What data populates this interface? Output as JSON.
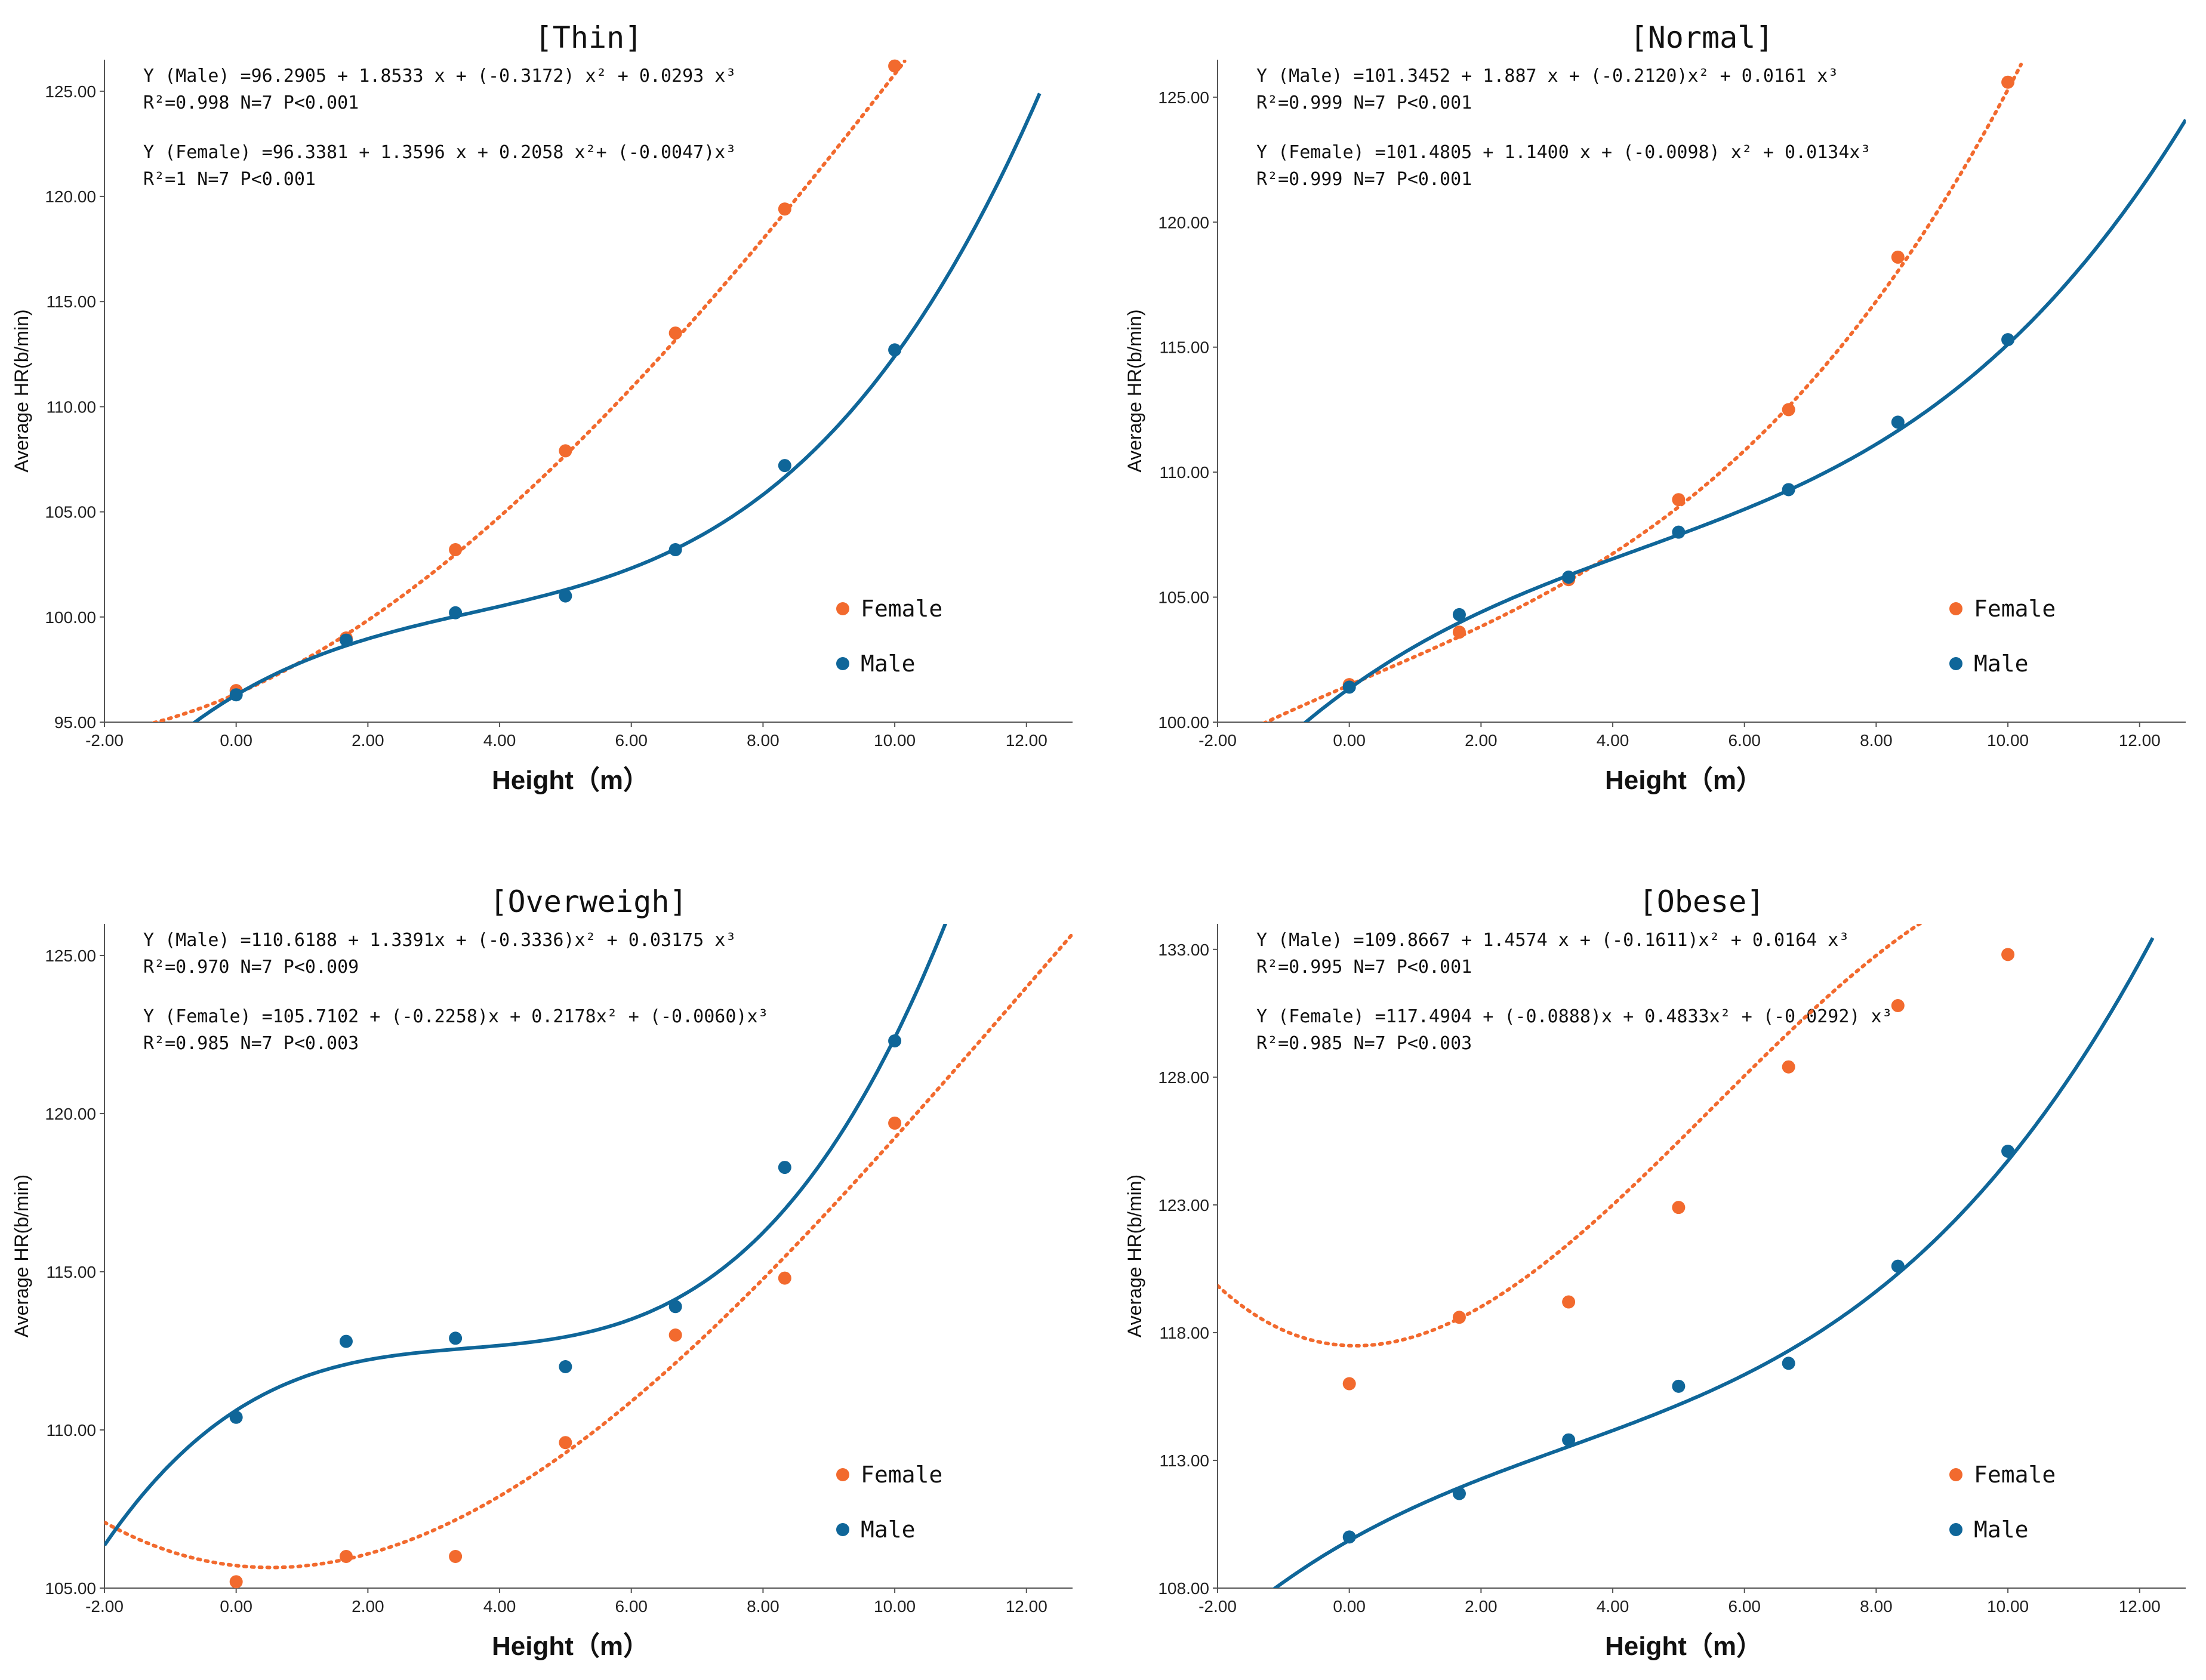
{
  "figure": {
    "series_names": [
      "Female",
      "Male"
    ],
    "colors": {
      "Female": "#f26a2e",
      "Male": "#0f6699"
    }
  },
  "chart_data": [
    {
      "type": "scatter",
      "title": "[Thin]",
      "xlabel": "Height（m）",
      "ylabel": "Average HR(b/min)",
      "xlim": [
        -2,
        12.7
      ],
      "ylim": [
        95,
        126.5
      ],
      "xticks": [
        "-2.00",
        "0.00",
        "2.00",
        "4.00",
        "6.00",
        "8.00",
        "10.00",
        "12.00"
      ],
      "yticks": [
        "95.00",
        "100.00",
        "105.00",
        "110.00",
        "115.00",
        "120.00",
        "125.00"
      ],
      "equations": [
        "Y (Male) =96.2905 + 1.8533 x + (-0.3172) x² + 0.0293 x³",
        "R²=0.998      N=7      P<0.001",
        "Y (Female) =96.3381 + 1.3596 x + 0.2058 x²+ (-0.0047)x³",
        "R²=1    N=7       P<0.001"
      ],
      "legend": [
        "Female",
        "Male"
      ],
      "series": [
        {
          "name": "Female",
          "x": [
            0,
            1.67,
            3.33,
            5,
            6.67,
            8.33,
            10
          ],
          "y": [
            96.5,
            99.0,
            103.2,
            107.9,
            113.5,
            119.4,
            126.2
          ],
          "coef": [
            96.3381,
            1.3596,
            0.2058,
            -0.0047
          ],
          "fit_range": [
            -1.25,
            10.15
          ]
        },
        {
          "name": "Male",
          "x": [
            0,
            1.67,
            3.33,
            5,
            6.67,
            8.33,
            10
          ],
          "y": [
            96.3,
            98.9,
            100.2,
            101.0,
            103.2,
            107.2,
            112.7
          ],
          "coef": [
            96.2905,
            1.8533,
            -0.3172,
            0.0293
          ],
          "fit_range": [
            -0.7,
            12.2
          ]
        }
      ]
    },
    {
      "type": "scatter",
      "title": "[Normal]",
      "xlabel": "Height（m）",
      "ylabel": "Average HR(b/min)",
      "xlim": [
        -2,
        12.7
      ],
      "ylim": [
        100,
        126.5
      ],
      "xticks": [
        "-2.00",
        "0.00",
        "2.00",
        "4.00",
        "6.00",
        "8.00",
        "10.00",
        "12.00"
      ],
      "yticks": [
        "100.00",
        "105.00",
        "110.00",
        "115.00",
        "120.00",
        "125.00"
      ],
      "equations": [
        "Y (Male) =101.3452 + 1.887 x + (-0.2120)x² + 0.0161 x³",
        "R²=0.999      N=7      P<0.001",
        "Y (Female) =101.4805 + 1.1400 x + (-0.0098) x² + 0.0134x³",
        "R²=0.999      N=7      P<0.001"
      ],
      "legend": [
        "Female",
        "Male"
      ],
      "series": [
        {
          "name": "Female",
          "x": [
            0,
            1.67,
            3.33,
            5,
            6.67,
            8.33,
            10
          ],
          "y": [
            101.5,
            103.6,
            105.7,
            108.9,
            112.5,
            118.6,
            125.6
          ],
          "coef": [
            101.4805,
            1.14,
            -0.0098,
            0.0134
          ],
          "fit_range": [
            -1.3,
            10.2
          ]
        },
        {
          "name": "Male",
          "x": [
            0,
            1.67,
            3.33,
            5,
            6.67,
            8.33,
            10
          ],
          "y": [
            101.4,
            104.3,
            105.8,
            107.6,
            109.3,
            112.0,
            115.3
          ],
          "coef": [
            101.3452,
            1.887,
            -0.212,
            0.0161
          ],
          "fit_range": [
            -0.7,
            12.7
          ]
        }
      ]
    },
    {
      "type": "scatter",
      "title": "[Overweigh]",
      "xlabel": "Height（m）",
      "ylabel": "Average HR(b/min)",
      "xlim": [
        -2,
        12.7
      ],
      "ylim": [
        105,
        126
      ],
      "xticks": [
        "-2.00",
        "0.00",
        "2.00",
        "4.00",
        "6.00",
        "8.00",
        "10.00",
        "12.00"
      ],
      "yticks": [
        "105.00",
        "110.00",
        "115.00",
        "120.00",
        "125.00"
      ],
      "equations": [
        "Y (Male) =110.6188 + 1.3391x + (-0.3336)x² + 0.03175 x³",
        "R²=0.970      N=7      P<0.009",
        "Y (Female) =105.7102 + (-0.2258)x + 0.2178x² + (-0.0060)x³",
        "R²=0.985      N=7      P<0.003"
      ],
      "legend": [
        "Female",
        "Male"
      ],
      "series": [
        {
          "name": "Female",
          "x": [
            0,
            1.67,
            3.33,
            5,
            6.67,
            8.33,
            10
          ],
          "y": [
            105.2,
            106.0,
            106.0,
            109.6,
            113.0,
            114.8,
            119.7
          ],
          "coef": [
            105.7102,
            -0.2258,
            0.2178,
            -0.006
          ],
          "fit_range": [
            -2.0,
            12.7
          ]
        },
        {
          "name": "Male",
          "x": [
            0,
            1.67,
            3.33,
            5,
            6.67,
            8.33,
            10
          ],
          "y": [
            110.4,
            112.8,
            112.9,
            112.0,
            113.9,
            118.3,
            122.3
          ],
          "coef": [
            110.6188,
            1.3391,
            -0.3336,
            0.03175
          ],
          "fit_range": [
            -2.0,
            10.8
          ]
        }
      ]
    },
    {
      "type": "scatter",
      "title": "[Obese]",
      "xlabel": "Height（m）",
      "ylabel": "Average HR(b/min)",
      "xlim": [
        -2,
        12.7
      ],
      "ylim": [
        108,
        134
      ],
      "xticks": [
        "-2.00",
        "0.00",
        "2.00",
        "4.00",
        "6.00",
        "8.00",
        "10.00",
        "12.00"
      ],
      "yticks": [
        "108.00",
        "113.00",
        "118.00",
        "123.00",
        "128.00",
        "133.00"
      ],
      "equations": [
        "Y (Male) =109.8667 + 1.4574 x + (-0.1611)x² + 0.0164 x³",
        "R²=0.995      N=7      P<0.001",
        "Y (Female) =117.4904 + (-0.0888)x + 0.4833x² + (-0.0292) x³",
        "R²=0.985    N=7      P<0.003"
      ],
      "legend": [
        "Female",
        "Male"
      ],
      "series": [
        {
          "name": "Female",
          "x": [
            0,
            1.67,
            3.33,
            5,
            6.67,
            8.33,
            10
          ],
          "y": [
            116.0,
            118.6,
            119.2,
            122.9,
            128.4,
            130.8,
            132.8
          ],
          "coef": [
            117.4904,
            -0.0888,
            0.4833,
            -0.0292
          ],
          "fit_range": [
            -2.0,
            12.7
          ]
        },
        {
          "name": "Male",
          "x": [
            0,
            1.67,
            3.33,
            5,
            6.67,
            8.33,
            10
          ],
          "y": [
            110.0,
            111.7,
            113.8,
            115.9,
            116.8,
            120.6,
            125.1
          ],
          "coef": [
            109.8667,
            1.4574,
            -0.1611,
            0.0164
          ],
          "fit_range": [
            -1.2,
            12.2
          ]
        }
      ]
    }
  ]
}
